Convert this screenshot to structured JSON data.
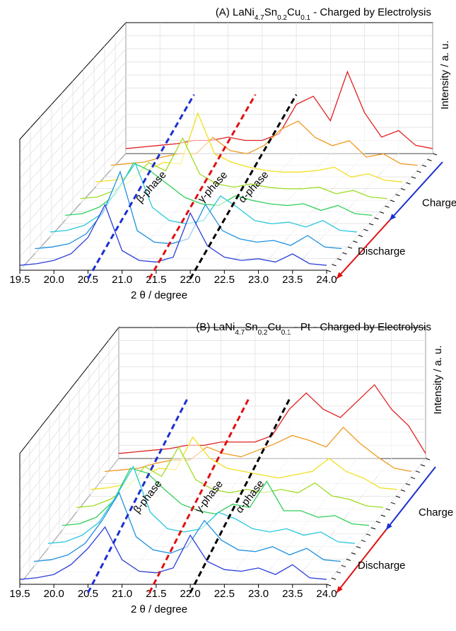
{
  "chart_data": [
    {
      "type": "waterfall",
      "title_parts": [
        {
          "text": "(A) LaNi"
        },
        {
          "text": "4.7",
          "sub": true
        },
        {
          "text": "Sn"
        },
        {
          "text": "0.2",
          "sub": true
        },
        {
          "text": "Cu"
        },
        {
          "text": "0.1",
          "sub": true
        },
        {
          "text": " - Charged by Electrolysis"
        }
      ],
      "x_label": "2 θ / degree",
      "y_label": "Intensity / a. u.",
      "xlim": [
        19.5,
        24.0
      ],
      "xticks": [
        {
          "value": 19.5,
          "label": "19.5"
        },
        {
          "value": 20,
          "label": "20.0"
        },
        {
          "value": 20.5,
          "label": "20.5"
        },
        {
          "value": 21,
          "label": "21.0"
        },
        {
          "value": 21.5,
          "label": "21.5"
        },
        {
          "value": 22,
          "label": "22.0"
        },
        {
          "value": 22.5,
          "label": "22.5"
        },
        {
          "value": 23,
          "label": "23.0"
        },
        {
          "value": 23.5,
          "label": "23.5"
        },
        {
          "value": 24,
          "label": "24.0"
        }
      ],
      "ylim": [
        0,
        80
      ],
      "grid": true,
      "x": [
        19.5,
        19.75,
        20,
        20.25,
        20.5,
        20.75,
        21,
        21.25,
        21.5,
        21.75,
        22,
        22.25,
        22.5,
        22.75,
        23,
        23.25,
        23.5,
        23.75,
        24
      ],
      "series": [
        {
          "color": "#2b3fd8",
          "values": [
            3,
            4,
            6,
            10,
            20,
            40,
            12,
            6,
            5,
            8,
            35,
            15,
            8,
            6,
            7,
            5,
            10,
            4,
            3
          ]
        },
        {
          "color": "#1e90e0",
          "values": [
            3,
            4,
            6,
            12,
            25,
            50,
            14,
            7,
            6,
            9,
            30,
            14,
            9,
            7,
            8,
            5,
            11,
            4,
            3
          ]
        },
        {
          "color": "#27c8dc",
          "values": [
            3,
            4,
            7,
            14,
            30,
            45,
            18,
            10,
            8,
            10,
            25,
            18,
            10,
            8,
            9,
            6,
            10,
            4,
            3
          ]
        },
        {
          "color": "#2fcf5a",
          "values": [
            3,
            4,
            8,
            16,
            35,
            30,
            22,
            14,
            10,
            9,
            15,
            12,
            10,
            9,
            10,
            6,
            9,
            4,
            3
          ]
        },
        {
          "color": "#9fdc22",
          "values": [
            3,
            4,
            8,
            14,
            25,
            20,
            40,
            18,
            12,
            10,
            12,
            10,
            9,
            9,
            10,
            6,
            8,
            4,
            3
          ]
        },
        {
          "color": "#f0e020",
          "values": [
            3,
            4,
            6,
            10,
            15,
            14,
            45,
            20,
            15,
            12,
            10,
            9,
            9,
            10,
            12,
            6,
            8,
            4,
            3
          ]
        },
        {
          "color": "#f09a20",
          "values": [
            3,
            4,
            5,
            8,
            10,
            10,
            20,
            12,
            10,
            15,
            25,
            30,
            20,
            15,
            18,
            8,
            10,
            4,
            3
          ]
        },
        {
          "color": "#e02020",
          "values": [
            3,
            4,
            5,
            6,
            8,
            8,
            10,
            8,
            8,
            12,
            30,
            35,
            20,
            50,
            25,
            10,
            14,
            5,
            3
          ]
        }
      ],
      "phase_lines": [
        {
          "label": "β-phase",
          "x": 20.5,
          "color": "#1a2fd0"
        },
        {
          "label": "γ-phase",
          "x": 21.4,
          "color": "#e01010"
        },
        {
          "label": "α-phase",
          "x": 22.0,
          "color": "#000000"
        }
      ],
      "charge_label": "Charge",
      "charge_color": "#1a2fd0",
      "discharge_label": "Discharge",
      "discharge_color": "#e01010"
    },
    {
      "type": "waterfall",
      "title_parts": [
        {
          "text": "(B) LaNi"
        },
        {
          "text": "4.7",
          "sub": true
        },
        {
          "text": "Sn"
        },
        {
          "text": "0.2",
          "sub": true
        },
        {
          "text": "Cu"
        },
        {
          "text": "0.1",
          "sub": true
        },
        {
          "text": " - Pt - Charged by Electrolysis"
        }
      ],
      "x_label": "2 θ / degree",
      "y_label": "Intensity / a. u.",
      "xlim": [
        19.5,
        24.0
      ],
      "xticks": [
        {
          "value": 19.5,
          "label": "19.5"
        },
        {
          "value": 20,
          "label": "20.0"
        },
        {
          "value": 20.5,
          "label": "20.5"
        },
        {
          "value": 21,
          "label": "21.0"
        },
        {
          "value": 21.5,
          "label": "21.5"
        },
        {
          "value": 22,
          "label": "22.0"
        },
        {
          "value": 22.5,
          "label": "22.5"
        },
        {
          "value": 23,
          "label": "23.0"
        },
        {
          "value": 23.5,
          "label": "23.5"
        },
        {
          "value": 24,
          "label": "24.0"
        }
      ],
      "ylim": [
        0,
        80
      ],
      "grid": true,
      "x": [
        19.5,
        19.75,
        20,
        20.25,
        20.5,
        20.75,
        21,
        21.25,
        21.5,
        21.75,
        22,
        22.25,
        22.5,
        22.75,
        23,
        23.25,
        23.5,
        23.75,
        24
      ],
      "series": [
        {
          "color": "#2b3fd8",
          "values": [
            3,
            4,
            6,
            12,
            22,
            35,
            15,
            8,
            7,
            10,
            30,
            14,
            9,
            8,
            10,
            6,
            12,
            4,
            3
          ]
        },
        {
          "color": "#1e90e0",
          "values": [
            3,
            4,
            7,
            14,
            28,
            45,
            18,
            10,
            8,
            12,
            28,
            16,
            10,
            9,
            12,
            7,
            11,
            4,
            3
          ]
        },
        {
          "color": "#27c8dc",
          "values": [
            3,
            4,
            8,
            16,
            32,
            50,
            22,
            12,
            10,
            12,
            22,
            18,
            12,
            10,
            12,
            8,
            10,
            4,
            3
          ]
        },
        {
          "color": "#2fcf5a",
          "values": [
            3,
            4,
            8,
            18,
            38,
            35,
            25,
            16,
            12,
            10,
            16,
            14,
            30,
            12,
            12,
            8,
            9,
            4,
            3
          ]
        },
        {
          "color": "#9fdc22",
          "values": [
            3,
            4,
            8,
            15,
            28,
            22,
            40,
            20,
            14,
            12,
            14,
            12,
            14,
            12,
            18,
            10,
            8,
            4,
            3
          ]
        },
        {
          "color": "#f0e020",
          "values": [
            3,
            4,
            6,
            10,
            16,
            15,
            35,
            22,
            16,
            14,
            12,
            10,
            12,
            14,
            22,
            14,
            10,
            4,
            3
          ]
        },
        {
          "color": "#f09a20",
          "values": [
            3,
            4,
            5,
            8,
            10,
            10,
            18,
            14,
            12,
            16,
            20,
            25,
            22,
            18,
            30,
            20,
            12,
            5,
            3
          ]
        },
        {
          "color": "#e02020",
          "values": [
            3,
            4,
            5,
            6,
            8,
            8,
            10,
            10,
            10,
            14,
            30,
            40,
            30,
            25,
            35,
            45,
            30,
            20,
            3
          ]
        }
      ],
      "phase_lines": [
        {
          "label": "β-phase",
          "x": 20.5,
          "color": "#1a2fd0"
        },
        {
          "label": "γ-phase",
          "x": 21.4,
          "color": "#e01010"
        },
        {
          "label": "α-phase",
          "x": 22.0,
          "color": "#000000"
        }
      ],
      "charge_label": "Charge",
      "charge_color": "#1a2fd0",
      "discharge_label": "Discharge",
      "discharge_color": "#e01010"
    }
  ]
}
